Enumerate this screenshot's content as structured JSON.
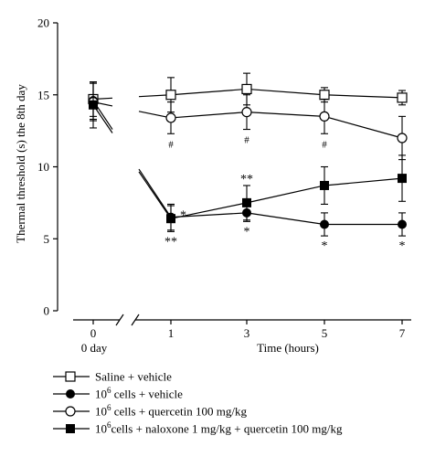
{
  "chart_data": {
    "type": "line",
    "ylabel": "Thermal threshold (s) the 8th day",
    "xlabel": "Time (hours)",
    "x_baseline_label": "0 day",
    "x": [
      0,
      1,
      3,
      5,
      7
    ],
    "x_tick_labels": [
      "0",
      "1",
      "3",
      "5",
      "7"
    ],
    "ylim": [
      0,
      20
    ],
    "y_ticks": [
      "0",
      "5",
      "10",
      "15",
      "20"
    ],
    "axis_break_after_x": 0,
    "series": [
      {
        "name": "Saline + vehicle",
        "marker": "open-square",
        "values": [
          14.7,
          15.0,
          15.4,
          15.0,
          14.8
        ],
        "errors": [
          1.2,
          1.2,
          1.1,
          0.5,
          0.5
        ]
      },
      {
        "name": "10^6 cells + vehicle",
        "marker": "filled-circle",
        "values": [
          14.6,
          6.5,
          6.8,
          6.0,
          6.0
        ],
        "errors": [
          1.3,
          0.9,
          0.6,
          0.8,
          0.8
        ]
      },
      {
        "name": "10^6 cells + quercetin 100 mg/kg",
        "marker": "open-circle",
        "values": [
          14.5,
          13.4,
          13.8,
          13.5,
          12.0
        ],
        "errors": [
          1.3,
          1.1,
          1.2,
          1.2,
          1.5
        ]
      },
      {
        "name": "10^6 cells + naloxone 1 mg/kg + quercetin 100 mg/kg",
        "marker": "filled-square",
        "values": [
          14.3,
          6.4,
          7.5,
          8.7,
          9.2
        ],
        "errors": [
          1.6,
          0.9,
          1.2,
          1.3,
          1.6
        ]
      }
    ],
    "annotations": [
      {
        "text": "*",
        "x": 1,
        "series": "10^6 cells + vehicle",
        "position": "right"
      },
      {
        "text": "**",
        "x": 1,
        "series": "10^6 cells + naloxone 1 mg/kg + quercetin 100 mg/kg",
        "position": "below"
      },
      {
        "text": "**",
        "x": 3,
        "series": "10^6 cells + naloxone 1 mg/kg + quercetin 100 mg/kg",
        "position": "above"
      },
      {
        "text": "*",
        "x": 3,
        "series": "10^6 cells + vehicle",
        "position": "below"
      },
      {
        "text": "*",
        "x": 5,
        "series": "10^6 cells + vehicle",
        "position": "below"
      },
      {
        "text": "*",
        "x": 7,
        "series": "10^6 cells + vehicle",
        "position": "below"
      },
      {
        "text": "#",
        "x": 1,
        "series": "10^6 cells + quercetin 100 mg/kg",
        "position": "below"
      },
      {
        "text": "#",
        "x": 3,
        "series": "10^6 cells + quercetin 100 mg/kg",
        "position": "below"
      },
      {
        "text": "#",
        "x": 5,
        "series": "10^6 cells + quercetin 100 mg/kg",
        "position": "below"
      }
    ]
  },
  "legend": [
    {
      "marker": "open-square",
      "prefix": "Saline + vehicle",
      "sup": "",
      "suffix": ""
    },
    {
      "marker": "filled-circle",
      "prefix": "10",
      "sup": "6",
      "suffix": " cells + vehicle"
    },
    {
      "marker": "open-circle",
      "prefix": "10",
      "sup": "6",
      "suffix": " cells + quercetin 100 mg/kg"
    },
    {
      "marker": "filled-square",
      "prefix": "10",
      "sup": "6",
      "suffix": "cells + naloxone 1 mg/kg + quercetin 100 mg/kg"
    }
  ]
}
